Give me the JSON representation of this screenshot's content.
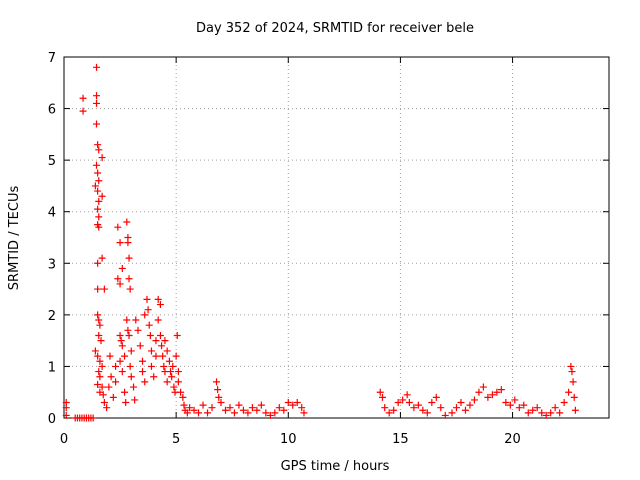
{
  "chart_data": {
    "type": "scatter",
    "title": "Day 352 of 2024, SRMTID for receiver bele",
    "xlabel": "GPS time / hours",
    "ylabel": "SRMTID / TECUs",
    "xlim": [
      0,
      24.3
    ],
    "ylim": [
      0,
      7
    ],
    "xticks": [
      0,
      5,
      10,
      15,
      20
    ],
    "yticks": [
      0,
      1,
      2,
      3,
      4,
      5,
      6,
      7
    ],
    "grid": true,
    "marker": "+",
    "color": "#ff0000",
    "series": [
      {
        "name": "SRMTID",
        "points": [
          [
            0.1,
            0.3
          ],
          [
            0.1,
            0.2
          ],
          [
            0.1,
            0.05
          ],
          [
            0.5,
            0.0
          ],
          [
            0.6,
            0.0
          ],
          [
            0.7,
            0.0
          ],
          [
            0.8,
            0.0
          ],
          [
            0.9,
            0.0
          ],
          [
            1.0,
            0.0
          ],
          [
            1.1,
            0.0
          ],
          [
            1.2,
            0.0
          ],
          [
            1.3,
            0.0
          ],
          [
            0.85,
            6.2
          ],
          [
            0.85,
            5.95
          ],
          [
            1.45,
            6.8
          ],
          [
            1.45,
            6.25
          ],
          [
            1.45,
            6.1
          ],
          [
            1.45,
            5.7
          ],
          [
            1.5,
            5.3
          ],
          [
            1.55,
            5.2
          ],
          [
            1.7,
            5.05
          ],
          [
            1.45,
            4.9
          ],
          [
            1.5,
            4.75
          ],
          [
            1.55,
            4.6
          ],
          [
            1.4,
            4.5
          ],
          [
            1.5,
            4.4
          ],
          [
            1.7,
            4.3
          ],
          [
            1.55,
            4.2
          ],
          [
            1.5,
            4.05
          ],
          [
            1.55,
            3.9
          ],
          [
            1.5,
            3.75
          ],
          [
            1.55,
            3.7
          ],
          [
            1.5,
            3.0
          ],
          [
            1.7,
            3.1
          ],
          [
            1.5,
            2.5
          ],
          [
            1.8,
            2.5
          ],
          [
            1.5,
            2.0
          ],
          [
            1.55,
            1.9
          ],
          [
            1.6,
            1.8
          ],
          [
            1.55,
            1.6
          ],
          [
            1.65,
            1.5
          ],
          [
            1.4,
            1.3
          ],
          [
            1.5,
            1.2
          ],
          [
            1.6,
            1.1
          ],
          [
            1.7,
            1.0
          ],
          [
            1.55,
            0.9
          ],
          [
            1.6,
            0.8
          ],
          [
            1.5,
            0.65
          ],
          [
            1.7,
            0.6
          ],
          [
            1.6,
            0.5
          ],
          [
            1.75,
            0.45
          ],
          [
            1.8,
            0.3
          ],
          [
            1.9,
            0.2
          ],
          [
            2.0,
            0.6
          ],
          [
            2.05,
            1.2
          ],
          [
            2.1,
            0.8
          ],
          [
            2.2,
            0.4
          ],
          [
            2.3,
            0.7
          ],
          [
            2.3,
            1.0
          ],
          [
            2.4,
            3.7
          ],
          [
            2.5,
            3.4
          ],
          [
            2.4,
            2.7
          ],
          [
            2.5,
            2.6
          ],
          [
            2.6,
            2.9
          ],
          [
            2.5,
            1.6
          ],
          [
            2.55,
            1.5
          ],
          [
            2.6,
            1.4
          ],
          [
            2.5,
            1.1
          ],
          [
            2.6,
            0.9
          ],
          [
            2.7,
            1.2
          ],
          [
            2.7,
            0.5
          ],
          [
            2.75,
            0.3
          ],
          [
            2.8,
            3.8
          ],
          [
            2.85,
            3.5
          ],
          [
            2.85,
            3.4
          ],
          [
            2.9,
            3.1
          ],
          [
            2.9,
            2.7
          ],
          [
            2.95,
            2.5
          ],
          [
            2.8,
            1.9
          ],
          [
            2.85,
            1.7
          ],
          [
            2.9,
            1.6
          ],
          [
            3.0,
            1.3
          ],
          [
            2.95,
            1.0
          ],
          [
            3.0,
            0.8
          ],
          [
            3.1,
            0.6
          ],
          [
            3.15,
            0.35
          ],
          [
            3.2,
            1.9
          ],
          [
            3.3,
            1.7
          ],
          [
            3.4,
            1.4
          ],
          [
            3.5,
            1.1
          ],
          [
            3.5,
            0.9
          ],
          [
            3.6,
            0.7
          ],
          [
            3.6,
            2.0
          ],
          [
            3.7,
            2.3
          ],
          [
            3.75,
            2.1
          ],
          [
            3.8,
            1.8
          ],
          [
            3.85,
            1.6
          ],
          [
            3.9,
            1.3
          ],
          [
            3.9,
            1.0
          ],
          [
            4.0,
            0.8
          ],
          [
            4.1,
            1.2
          ],
          [
            4.1,
            1.5
          ],
          [
            4.2,
            1.9
          ],
          [
            4.2,
            2.3
          ],
          [
            4.3,
            2.2
          ],
          [
            4.3,
            1.6
          ],
          [
            4.35,
            1.4
          ],
          [
            4.4,
            1.2
          ],
          [
            4.45,
            1.0
          ],
          [
            4.5,
            0.9
          ],
          [
            4.5,
            1.5
          ],
          [
            4.6,
            1.3
          ],
          [
            4.6,
            0.7
          ],
          [
            4.7,
            1.1
          ],
          [
            4.75,
            0.9
          ],
          [
            4.8,
            0.8
          ],
          [
            4.85,
            1.0
          ],
          [
            4.9,
            0.6
          ],
          [
            4.95,
            0.5
          ],
          [
            5.0,
            1.2
          ],
          [
            5.05,
            1.6
          ],
          [
            5.1,
            0.9
          ],
          [
            5.1,
            0.7
          ],
          [
            5.2,
            0.5
          ],
          [
            5.3,
            0.4
          ],
          [
            5.35,
            0.25
          ],
          [
            5.4,
            0.15
          ],
          [
            5.5,
            0.1
          ],
          [
            5.6,
            0.2
          ],
          [
            5.8,
            0.15
          ],
          [
            6.0,
            0.1
          ],
          [
            6.2,
            0.25
          ],
          [
            6.4,
            0.1
          ],
          [
            6.6,
            0.2
          ],
          [
            6.8,
            0.7
          ],
          [
            6.85,
            0.55
          ],
          [
            6.9,
            0.4
          ],
          [
            7.0,
            0.3
          ],
          [
            7.2,
            0.15
          ],
          [
            7.4,
            0.2
          ],
          [
            7.6,
            0.1
          ],
          [
            7.8,
            0.25
          ],
          [
            8.0,
            0.15
          ],
          [
            8.2,
            0.1
          ],
          [
            8.4,
            0.2
          ],
          [
            8.6,
            0.15
          ],
          [
            8.8,
            0.25
          ],
          [
            9.0,
            0.1
          ],
          [
            9.2,
            0.05
          ],
          [
            9.4,
            0.1
          ],
          [
            9.6,
            0.2
          ],
          [
            9.8,
            0.15
          ],
          [
            10.0,
            0.3
          ],
          [
            10.2,
            0.25
          ],
          [
            10.4,
            0.3
          ],
          [
            10.6,
            0.2
          ],
          [
            10.7,
            0.1
          ],
          [
            14.1,
            0.5
          ],
          [
            14.2,
            0.4
          ],
          [
            14.3,
            0.2
          ],
          [
            14.5,
            0.1
          ],
          [
            14.7,
            0.15
          ],
          [
            14.9,
            0.3
          ],
          [
            15.1,
            0.35
          ],
          [
            15.3,
            0.45
          ],
          [
            15.4,
            0.3
          ],
          [
            15.6,
            0.2
          ],
          [
            15.8,
            0.25
          ],
          [
            16.0,
            0.15
          ],
          [
            16.2,
            0.1
          ],
          [
            16.4,
            0.3
          ],
          [
            16.6,
            0.4
          ],
          [
            16.8,
            0.2
          ],
          [
            17.0,
            0.05
          ],
          [
            17.3,
            0.1
          ],
          [
            17.5,
            0.2
          ],
          [
            17.7,
            0.3
          ],
          [
            17.9,
            0.15
          ],
          [
            18.1,
            0.25
          ],
          [
            18.3,
            0.35
          ],
          [
            18.5,
            0.5
          ],
          [
            18.7,
            0.6
          ],
          [
            18.9,
            0.4
          ],
          [
            19.1,
            0.45
          ],
          [
            19.3,
            0.5
          ],
          [
            19.5,
            0.55
          ],
          [
            19.7,
            0.3
          ],
          [
            19.9,
            0.25
          ],
          [
            20.1,
            0.35
          ],
          [
            20.3,
            0.2
          ],
          [
            20.5,
            0.25
          ],
          [
            20.7,
            0.1
          ],
          [
            20.9,
            0.15
          ],
          [
            21.1,
            0.2
          ],
          [
            21.3,
            0.1
          ],
          [
            21.5,
            0.05
          ],
          [
            21.7,
            0.1
          ],
          [
            21.9,
            0.2
          ],
          [
            22.1,
            0.1
          ],
          [
            22.3,
            0.3
          ],
          [
            22.5,
            0.5
          ],
          [
            22.6,
            1.0
          ],
          [
            22.65,
            0.9
          ],
          [
            22.7,
            0.7
          ],
          [
            22.75,
            0.4
          ],
          [
            22.8,
            0.15
          ]
        ]
      }
    ]
  }
}
